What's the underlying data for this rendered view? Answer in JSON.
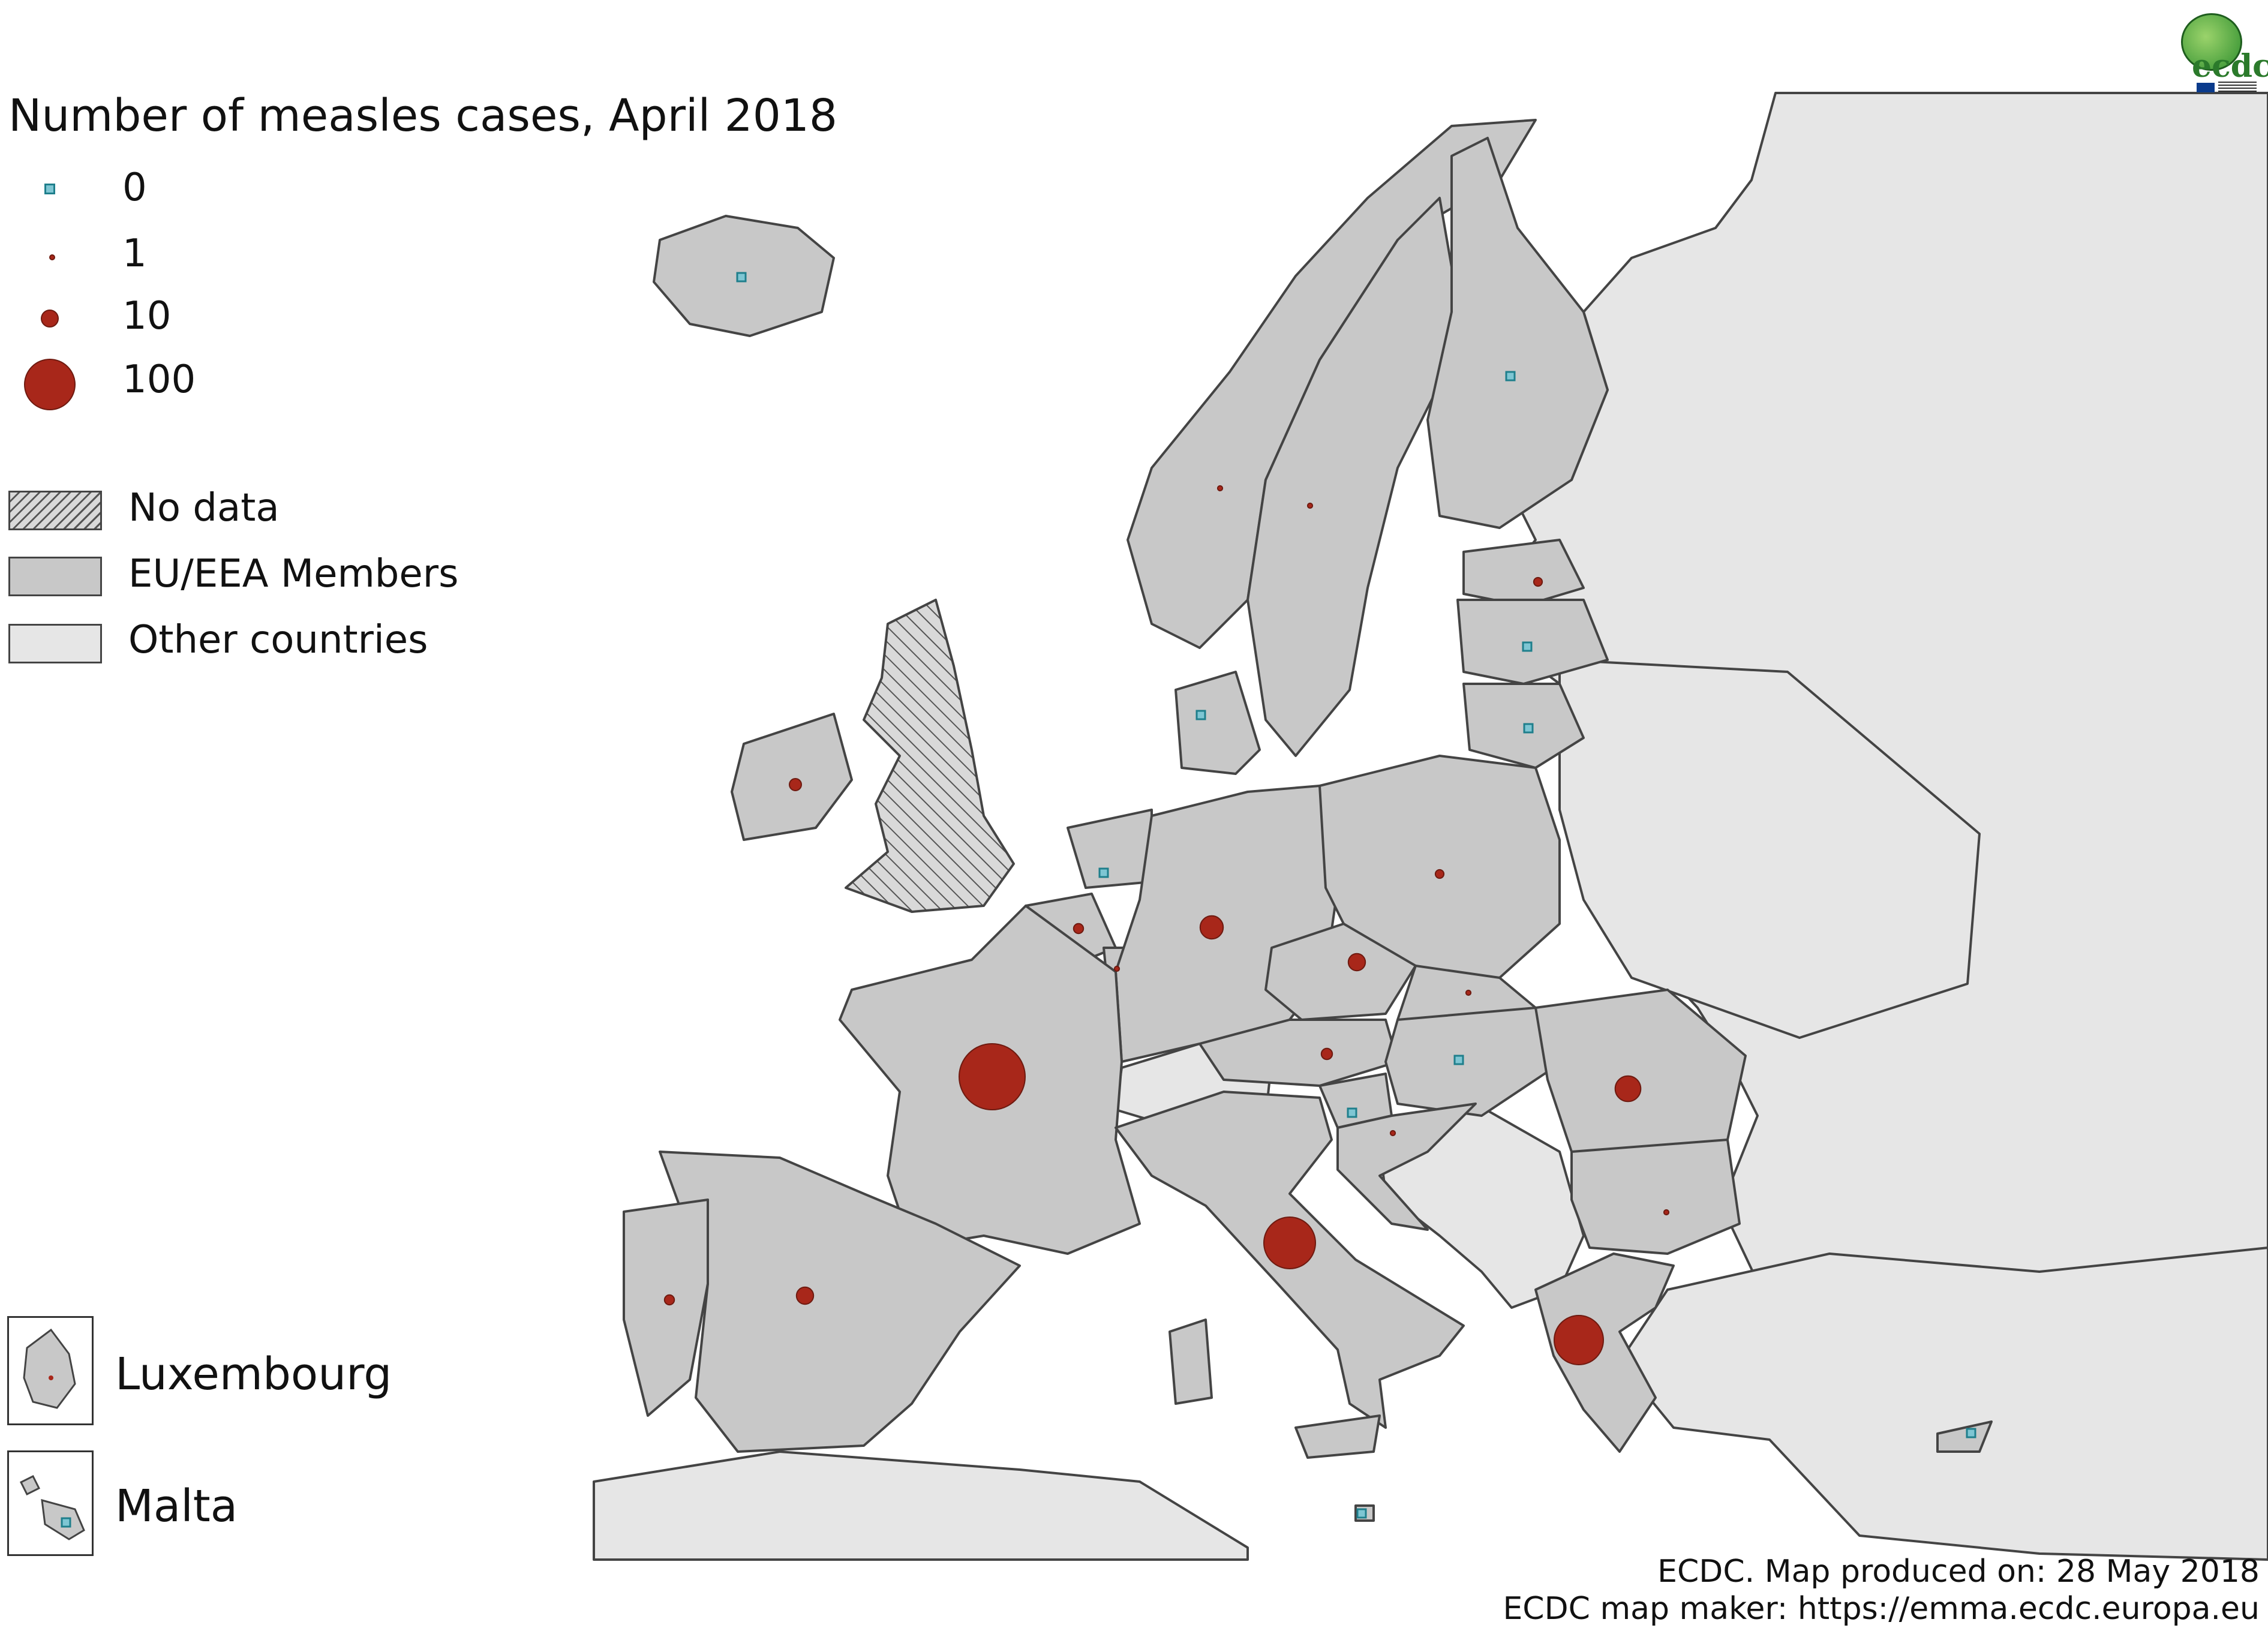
{
  "title": "Number of measles cases, April 2018",
  "legend": {
    "sizes": [
      {
        "label": "0",
        "symbol": "square"
      },
      {
        "label": "1",
        "symbol": "circle"
      },
      {
        "label": "10",
        "symbol": "circle"
      },
      {
        "label": "100",
        "symbol": "circle"
      }
    ],
    "fills": [
      {
        "label": "No data",
        "style": "hatched"
      },
      {
        "label": "EU/EEA Members",
        "style": "fill",
        "color": "#c8c8c8"
      },
      {
        "label": "Other countries",
        "style": "fill",
        "color": "#e6e6e6"
      }
    ]
  },
  "insets": [
    {
      "label": "Luxembourg",
      "cases": 1
    },
    {
      "label": "Malta",
      "cases": 0
    }
  ],
  "colors": {
    "eu_member": "#c8c8c8",
    "other_country": "#e6e6e6",
    "sea": "#ffffff",
    "case_circle": "#a8271a",
    "zero_marker": "#7ec6d3",
    "border": "#444444"
  },
  "logo": {
    "text": "ecdc",
    "icon": "ecdc-globe-logo"
  },
  "credits": {
    "line1": "ECDC. Map produced on: 28 May 2018",
    "line2": "ECDC map maker: https://emma.ecdc.europa.eu"
  },
  "map_data": {
    "countries": [
      {
        "name": "Iceland",
        "cases": 0
      },
      {
        "name": "Norway",
        "cases": 1
      },
      {
        "name": "Sweden",
        "cases": 1
      },
      {
        "name": "Finland",
        "cases": 0
      },
      {
        "name": "Estonia",
        "cases": 3
      },
      {
        "name": "Latvia",
        "cases": 0
      },
      {
        "name": "Lithuania",
        "cases": 0
      },
      {
        "name": "Denmark",
        "cases": 0
      },
      {
        "name": "Ireland",
        "cases": 6
      },
      {
        "name": "United Kingdom",
        "cases": null
      },
      {
        "name": "Netherlands",
        "cases": 0
      },
      {
        "name": "Belgium",
        "cases": 4
      },
      {
        "name": "Luxembourg",
        "cases": 1
      },
      {
        "name": "Germany",
        "cases": 22
      },
      {
        "name": "Poland",
        "cases": 3
      },
      {
        "name": "Czechia",
        "cases": 12
      },
      {
        "name": "Slovakia",
        "cases": 1
      },
      {
        "name": "Austria",
        "cases": 5
      },
      {
        "name": "Hungary",
        "cases": 0
      },
      {
        "name": "Slovenia",
        "cases": 0
      },
      {
        "name": "Croatia",
        "cases": 1
      },
      {
        "name": "Romania",
        "cases": 27
      },
      {
        "name": "Bulgaria",
        "cases": 1
      },
      {
        "name": "France",
        "cases": 180
      },
      {
        "name": "Italy",
        "cases": 110
      },
      {
        "name": "Greece",
        "cases": 100
      },
      {
        "name": "Spain",
        "cases": 12
      },
      {
        "name": "Portugal",
        "cases": 4
      },
      {
        "name": "Malta",
        "cases": 0
      },
      {
        "name": "Cyprus",
        "cases": 0
      }
    ]
  }
}
